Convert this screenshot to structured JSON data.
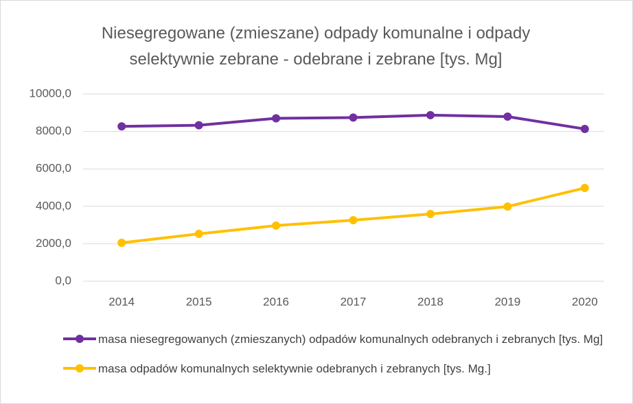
{
  "chart_data": {
    "type": "line",
    "title": [
      "Niesegregowane (zmieszane) odpady komunalne i odpady",
      "selektywnie zebrane - odebrane i zebrane [tys. Mg]"
    ],
    "categories": [
      "2014",
      "2015",
      "2016",
      "2017",
      "2018",
      "2019",
      "2020"
    ],
    "series": [
      {
        "name": "masa niesegregowanych (zmieszanych) odpadów komunalnych  odebranych i zebranych [tys. Mg]",
        "color": "#7030a0",
        "values": [
          8270,
          8330,
          8700,
          8740,
          8870,
          8790,
          8130
        ]
      },
      {
        "name": "masa odpadów komunalnych selektywnie odebranych i zebranych [tys. Mg.]",
        "color": "#ffc000",
        "values": [
          2050,
          2530,
          2970,
          3260,
          3590,
          3990,
          4980
        ]
      }
    ],
    "ylim": [
      0,
      10000
    ],
    "yticks": [
      {
        "value": 0,
        "label": "0,0"
      },
      {
        "value": 2000,
        "label": "2000,0"
      },
      {
        "value": 4000,
        "label": "4000,0"
      },
      {
        "value": 6000,
        "label": "6000,0"
      },
      {
        "value": 8000,
        "label": "8000,0"
      },
      {
        "value": 10000,
        "label": "10000,0"
      }
    ],
    "grid": true,
    "legend": "bottom"
  }
}
